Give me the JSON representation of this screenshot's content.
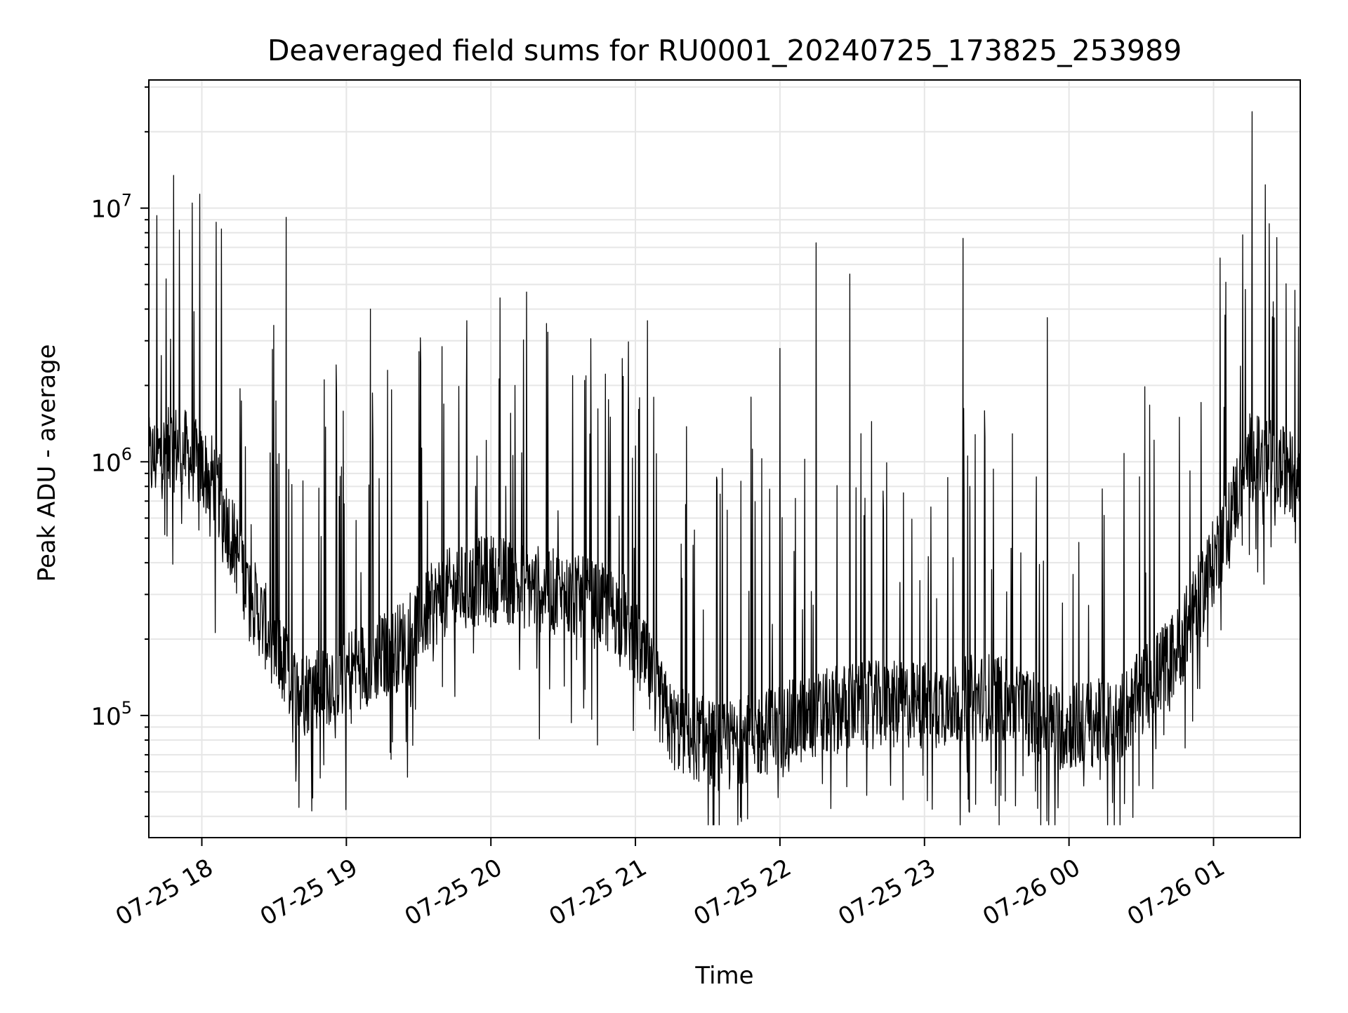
{
  "chart_data": {
    "type": "line",
    "title": "Deaveraged field sums for RU0001_20240725_173825_253989",
    "xlabel": "Time",
    "ylabel": "Peak ADU - average",
    "y_scale": "log",
    "ylim": [
      33000,
      32000000
    ],
    "y_major_ticks": [
      100000,
      1000000,
      10000000
    ],
    "y_tick_labels": [
      {
        "base": "10",
        "exp": "5"
      },
      {
        "base": "10",
        "exp": "6"
      },
      {
        "base": "10",
        "exp": "7"
      }
    ],
    "xlim": [
      "2024-07-25 17:38",
      "2024-07-26 01:36"
    ],
    "x_ticks": [
      "2024-07-25 18:00",
      "2024-07-25 19:00",
      "2024-07-25 20:00",
      "2024-07-25 21:00",
      "2024-07-25 22:00",
      "2024-07-25 23:00",
      "2024-07-26 00:00",
      "2024-07-26 01:00"
    ],
    "x_tick_labels": [
      "07-25 18",
      "07-25 19",
      "07-25 20",
      "07-25 21",
      "07-25 22",
      "07-25 23",
      "07-26 00",
      "07-26 01"
    ],
    "grid": true,
    "line_color": "#000000",
    "grid_color": "#e6e6e6",
    "series": [
      {
        "x": [
          "2024-07-25 17:38",
          "2024-07-25 17:50",
          "2024-07-25 18:05",
          "2024-07-25 18:20",
          "2024-07-25 18:40",
          "2024-07-25 19:00",
          "2024-07-25 19:20",
          "2024-07-25 19:40",
          "2024-07-25 20:00",
          "2024-07-25 20:30",
          "2024-07-25 20:55",
          "2024-07-25 21:15",
          "2024-07-25 21:35",
          "2024-07-25 22:00",
          "2024-07-25 22:30",
          "2024-07-25 23:00",
          "2024-07-25 23:30",
          "2024-07-25 23:55",
          "2024-07-26 00:20",
          "2024-07-26 00:45",
          "2024-07-26 01:00",
          "2024-07-26 01:15",
          "2024-07-26 01:36"
        ],
        "y": [
          1000000,
          1150000,
          850000,
          300000,
          120000,
          150000,
          180000,
          300000,
          350000,
          300000,
          250000,
          90000,
          75000,
          90000,
          110000,
          110000,
          120000,
          90000,
          95000,
          180000,
          400000,
          1050000,
          880000
        ]
      }
    ],
    "spikes": [
      {
        "x": "2024-07-25 18:35",
        "y": 9200000
      },
      {
        "x": "2024-07-25 19:10",
        "y": 4000000
      },
      {
        "x": "2024-07-25 19:50",
        "y": 3600000
      },
      {
        "x": "2024-07-25 20:10",
        "y": 2000000
      },
      {
        "x": "2024-07-25 21:05",
        "y": 3600000
      },
      {
        "x": "2024-07-25 21:48",
        "y": 1800000
      },
      {
        "x": "2024-07-25 22:00",
        "y": 2800000
      },
      {
        "x": "2024-07-25 22:15",
        "y": 7300000
      },
      {
        "x": "2024-07-25 22:29",
        "y": 5500000
      },
      {
        "x": "2024-07-25 23:16",
        "y": 7600000
      },
      {
        "x": "2024-07-25 23:51",
        "y": 3700000
      },
      {
        "x": "2024-07-26 01:16",
        "y": 24000000
      }
    ]
  }
}
